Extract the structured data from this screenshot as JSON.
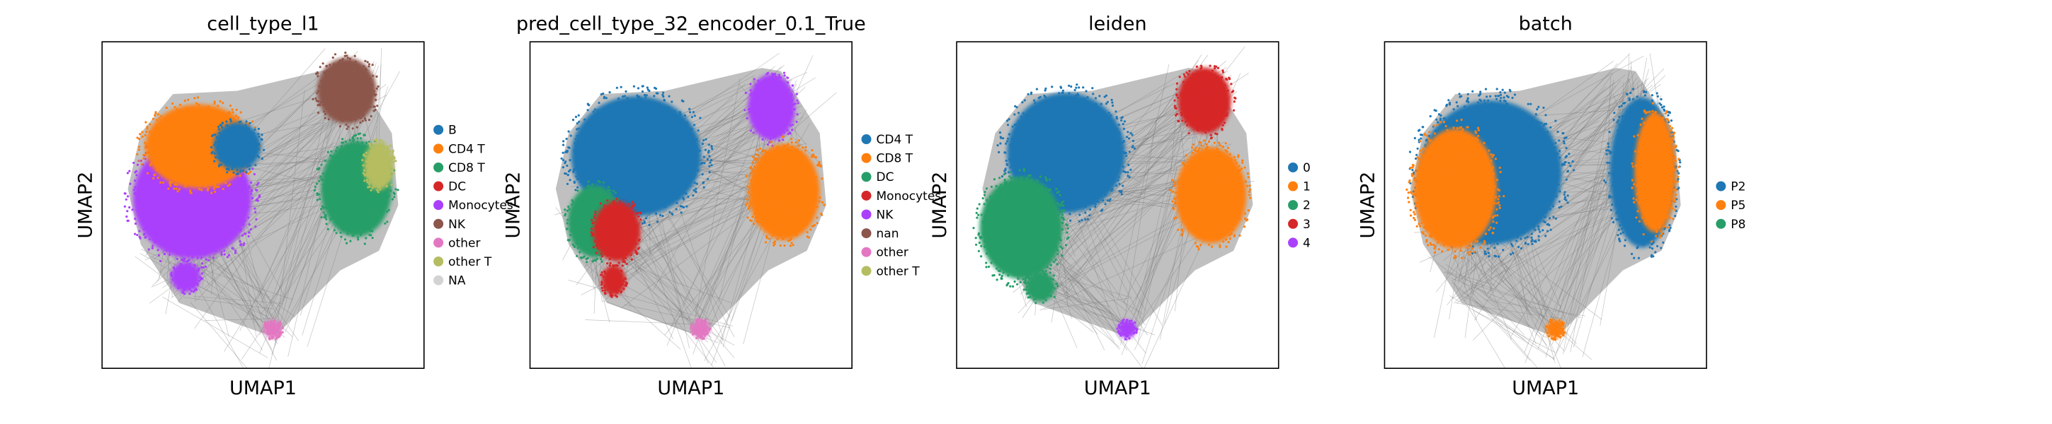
{
  "chart_data": [
    {
      "type": "scatter",
      "title": "cell_type_l1",
      "xlabel": "UMAP1",
      "ylabel": "UMAP2",
      "grid": false,
      "legend": "right",
      "legend_entries": [
        {
          "label": "B",
          "color": "#1f77b4"
        },
        {
          "label": "CD4 T",
          "color": "#ff7f0e"
        },
        {
          "label": "CD8 T",
          "color": "#279e68"
        },
        {
          "label": "DC",
          "color": "#d62728"
        },
        {
          "label": "Monocytes",
          "color": "#aa40fc"
        },
        {
          "label": "NK",
          "color": "#8c564b"
        },
        {
          "label": "other",
          "color": "#e377c2"
        },
        {
          "label": "other T",
          "color": "#b5bd61"
        },
        {
          "label": "NA",
          "color": "#d3d3d3"
        }
      ],
      "clusters": [
        {
          "label": "Monocytes",
          "color": "#aa40fc",
          "cx": 0.28,
          "cy": 0.52,
          "rx": 0.2,
          "ry": 0.2
        },
        {
          "label": "CD4 T",
          "color": "#ff7f0e",
          "cx": 0.3,
          "cy": 0.68,
          "rx": 0.18,
          "ry": 0.14
        },
        {
          "label": "B",
          "color": "#1f77b4",
          "cx": 0.42,
          "cy": 0.68,
          "rx": 0.08,
          "ry": 0.08
        },
        {
          "label": "NK",
          "color": "#8c564b",
          "cx": 0.76,
          "cy": 0.85,
          "rx": 0.1,
          "ry": 0.11
        },
        {
          "label": "CD8 T",
          "color": "#279e68",
          "cx": 0.79,
          "cy": 0.55,
          "rx": 0.12,
          "ry": 0.16
        },
        {
          "label": "other T",
          "color": "#b5bd61",
          "cx": 0.86,
          "cy": 0.62,
          "rx": 0.05,
          "ry": 0.08
        },
        {
          "label": "Monocytes",
          "color": "#aa40fc",
          "cx": 0.26,
          "cy": 0.28,
          "rx": 0.05,
          "ry": 0.05
        },
        {
          "label": "other",
          "color": "#e377c2",
          "cx": 0.53,
          "cy": 0.12,
          "rx": 0.03,
          "ry": 0.03
        }
      ]
    },
    {
      "type": "scatter",
      "title": "pred_cell_type_32_encoder_0.1_True",
      "xlabel": "UMAP1",
      "ylabel": "UMAP2",
      "grid": false,
      "legend": "right",
      "legend_entries": [
        {
          "label": "CD4 T",
          "color": "#1f77b4"
        },
        {
          "label": "CD8 T",
          "color": "#ff7f0e"
        },
        {
          "label": "DC",
          "color": "#279e68"
        },
        {
          "label": "Monocytes",
          "color": "#d62728"
        },
        {
          "label": "NK",
          "color": "#aa40fc"
        },
        {
          "label": "nan",
          "color": "#8c564b"
        },
        {
          "label": "other",
          "color": "#e377c2"
        },
        {
          "label": "other T",
          "color": "#b5bd61"
        }
      ],
      "clusters": [
        {
          "label": "CD4 T",
          "color": "#1f77b4",
          "cx": 0.33,
          "cy": 0.65,
          "rx": 0.22,
          "ry": 0.2
        },
        {
          "label": "DC",
          "color": "#279e68",
          "cx": 0.2,
          "cy": 0.45,
          "rx": 0.09,
          "ry": 0.12
        },
        {
          "label": "Monocytes",
          "color": "#d62728",
          "cx": 0.27,
          "cy": 0.42,
          "rx": 0.08,
          "ry": 0.1
        },
        {
          "label": "NK",
          "color": "#aa40fc",
          "cx": 0.75,
          "cy": 0.8,
          "rx": 0.08,
          "ry": 0.11
        },
        {
          "label": "CD8 T",
          "color": "#ff7f0e",
          "cx": 0.79,
          "cy": 0.54,
          "rx": 0.12,
          "ry": 0.16
        },
        {
          "label": "Monocytes",
          "color": "#d62728",
          "cx": 0.26,
          "cy": 0.27,
          "rx": 0.04,
          "ry": 0.05
        },
        {
          "label": "other",
          "color": "#e377c2",
          "cx": 0.53,
          "cy": 0.12,
          "rx": 0.03,
          "ry": 0.03
        }
      ]
    },
    {
      "type": "scatter",
      "title": "leiden",
      "xlabel": "UMAP1",
      "ylabel": "UMAP2",
      "grid": false,
      "legend": "right",
      "legend_entries": [
        {
          "label": "0",
          "color": "#1f77b4"
        },
        {
          "label": "1",
          "color": "#ff7f0e"
        },
        {
          "label": "2",
          "color": "#279e68"
        },
        {
          "label": "3",
          "color": "#d62728"
        },
        {
          "label": "4",
          "color": "#aa40fc"
        }
      ],
      "clusters": [
        {
          "label": "0",
          "color": "#1f77b4",
          "cx": 0.34,
          "cy": 0.66,
          "rx": 0.2,
          "ry": 0.2
        },
        {
          "label": "2",
          "color": "#279e68",
          "cx": 0.2,
          "cy": 0.43,
          "rx": 0.14,
          "ry": 0.17
        },
        {
          "label": "3",
          "color": "#d62728",
          "cx": 0.77,
          "cy": 0.82,
          "rx": 0.09,
          "ry": 0.11
        },
        {
          "label": "1",
          "color": "#ff7f0e",
          "cx": 0.79,
          "cy": 0.53,
          "rx": 0.12,
          "ry": 0.16
        },
        {
          "label": "2",
          "color": "#279e68",
          "cx": 0.26,
          "cy": 0.25,
          "rx": 0.05,
          "ry": 0.05
        },
        {
          "label": "4",
          "color": "#aa40fc",
          "cx": 0.53,
          "cy": 0.12,
          "rx": 0.03,
          "ry": 0.03
        }
      ]
    },
    {
      "type": "scatter",
      "title": "batch",
      "xlabel": "UMAP1",
      "ylabel": "UMAP2",
      "grid": false,
      "legend": "right",
      "legend_entries": [
        {
          "label": "P2",
          "color": "#1f77b4"
        },
        {
          "label": "P5",
          "color": "#ff7f0e"
        },
        {
          "label": "P8",
          "color": "#279e68"
        }
      ],
      "clusters": [
        {
          "label": "P2",
          "color": "#1f77b4",
          "cx": 0.33,
          "cy": 0.6,
          "rx": 0.24,
          "ry": 0.24
        },
        {
          "label": "P5",
          "color": "#ff7f0e",
          "cx": 0.22,
          "cy": 0.55,
          "rx": 0.14,
          "ry": 0.2
        },
        {
          "label": "P2",
          "color": "#1f77b4",
          "cx": 0.8,
          "cy": 0.6,
          "rx": 0.11,
          "ry": 0.25
        },
        {
          "label": "P5",
          "color": "#ff7f0e",
          "cx": 0.84,
          "cy": 0.6,
          "rx": 0.07,
          "ry": 0.2
        },
        {
          "label": "P5",
          "color": "#ff7f0e",
          "cx": 0.53,
          "cy": 0.12,
          "rx": 0.03,
          "ry": 0.03
        }
      ]
    }
  ]
}
